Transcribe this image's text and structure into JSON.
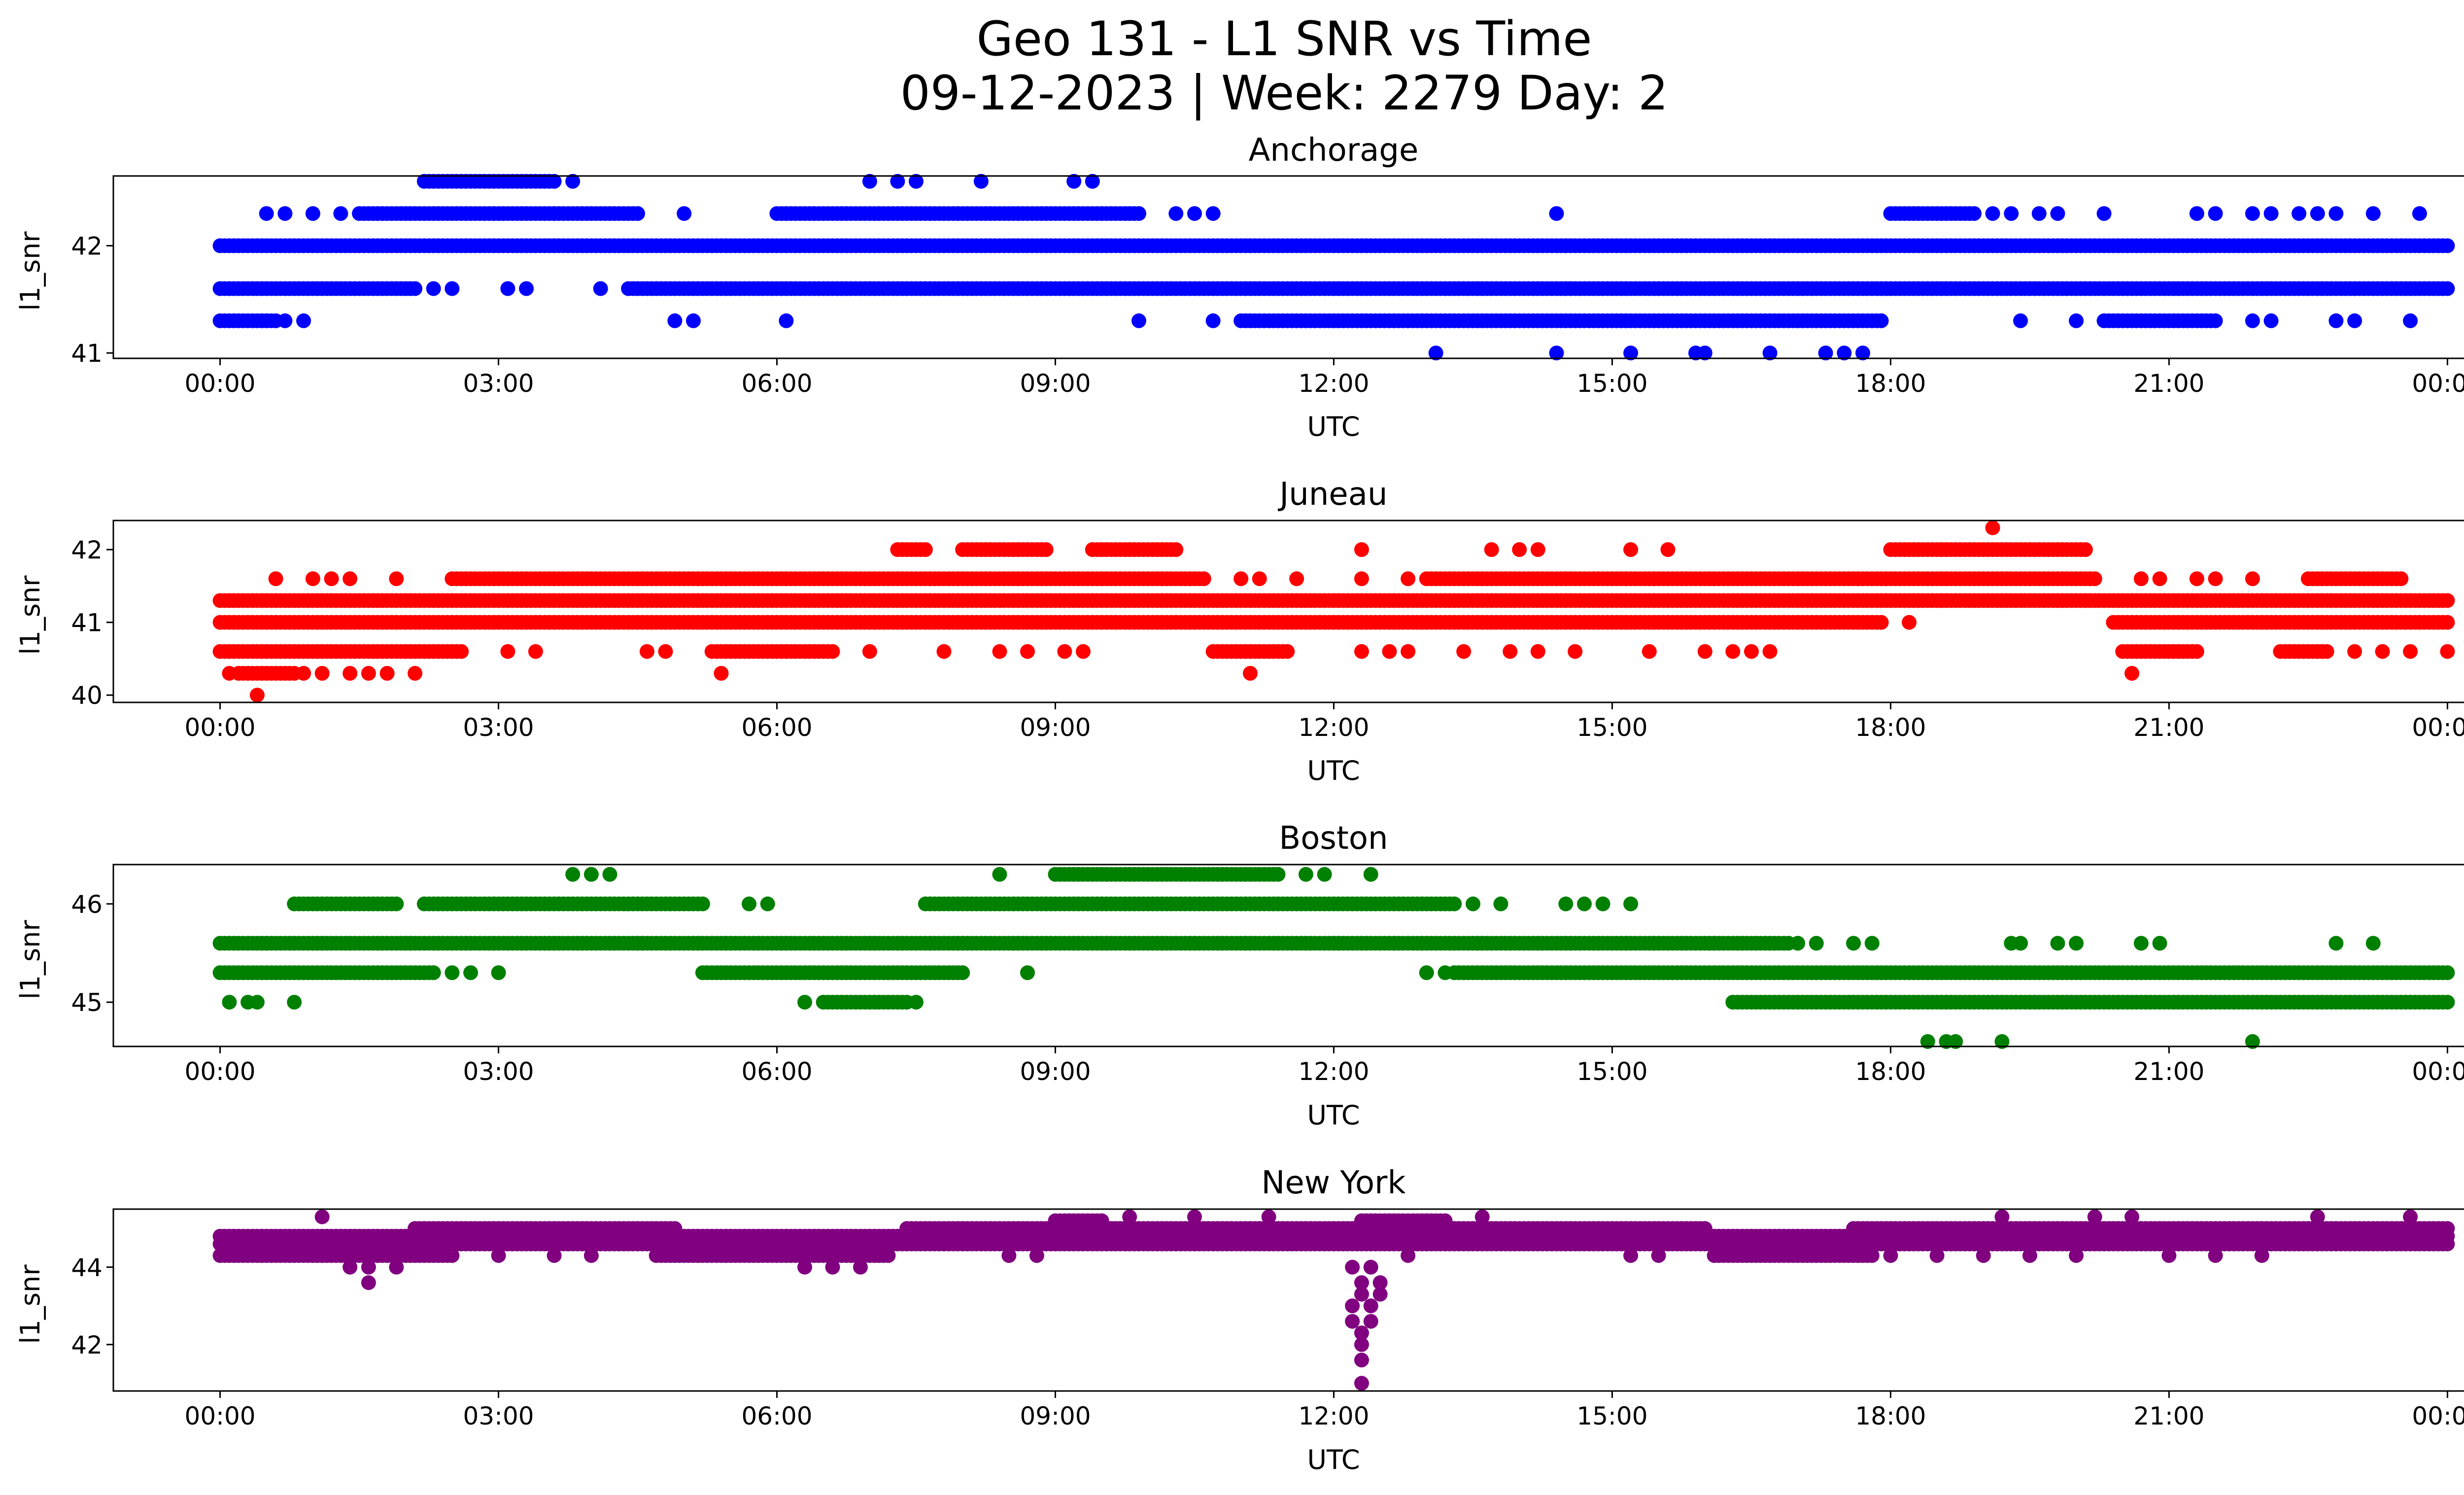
{
  "figure": {
    "title_line1": "Geo 131 - L1 SNR vs Time",
    "title_line2": "09-12-2023 | Week: 2279 Day: 2"
  },
  "chart_data": [
    {
      "type": "scatter",
      "title": "Anchorage",
      "xlabel": "UTC",
      "ylabel": "l1_snr",
      "color": "#0000ff",
      "x_ticks": [
        "00:00",
        "03:00",
        "06:00",
        "09:00",
        "12:00",
        "15:00",
        "18:00",
        "21:00",
        "00:00"
      ],
      "xlim_hours": [
        -1.15,
        25.15
      ],
      "ylim": [
        40.95,
        42.65
      ],
      "y_ticks": [
        41,
        42
      ],
      "levels": [
        {
          "y": 42.0,
          "segments": [
            [
              0.0,
              24.0
            ]
          ]
        },
        {
          "y": 41.6,
          "segments": [
            [
              0.0,
              2.1
            ],
            [
              4.4,
              24.0
            ]
          ]
        },
        {
          "y": 41.3,
          "segments": [
            [
              0.0,
              0.6
            ],
            [
              11.0,
              17.9
            ],
            [
              20.3,
              21.5
            ]
          ]
        },
        {
          "y": 42.3,
          "segments": [
            [
              1.5,
              4.5
            ],
            [
              6.0,
              9.9
            ],
            [
              18.0,
              18.9
            ]
          ]
        },
        {
          "y": 42.6,
          "segments": [
            [
              2.2,
              3.6
            ]
          ]
        }
      ],
      "points": [
        {
          "x": 0.7,
          "y": 41.3
        },
        {
          "x": 0.9,
          "y": 41.3
        },
        {
          "x": 4.9,
          "y": 41.3
        },
        {
          "x": 5.1,
          "y": 41.3
        },
        {
          "x": 6.1,
          "y": 41.3
        },
        {
          "x": 9.9,
          "y": 41.3
        },
        {
          "x": 10.7,
          "y": 41.3
        },
        {
          "x": 19.4,
          "y": 41.3
        },
        {
          "x": 20.0,
          "y": 41.3
        },
        {
          "x": 21.9,
          "y": 41.3
        },
        {
          "x": 22.1,
          "y": 41.3
        },
        {
          "x": 22.8,
          "y": 41.3
        },
        {
          "x": 23.0,
          "y": 41.3
        },
        {
          "x": 23.6,
          "y": 41.3
        },
        {
          "x": 2.3,
          "y": 41.6
        },
        {
          "x": 2.5,
          "y": 41.6
        },
        {
          "x": 3.1,
          "y": 41.6
        },
        {
          "x": 3.3,
          "y": 41.6
        },
        {
          "x": 4.1,
          "y": 41.6
        },
        {
          "x": 0.5,
          "y": 42.3
        },
        {
          "x": 0.7,
          "y": 42.3
        },
        {
          "x": 1.0,
          "y": 42.3
        },
        {
          "x": 1.3,
          "y": 42.3
        },
        {
          "x": 5.0,
          "y": 42.3
        },
        {
          "x": 10.3,
          "y": 42.3
        },
        {
          "x": 10.5,
          "y": 42.3
        },
        {
          "x": 10.7,
          "y": 42.3
        },
        {
          "x": 14.4,
          "y": 42.3
        },
        {
          "x": 19.1,
          "y": 42.3
        },
        {
          "x": 19.3,
          "y": 42.3
        },
        {
          "x": 19.6,
          "y": 42.3
        },
        {
          "x": 19.8,
          "y": 42.3
        },
        {
          "x": 20.3,
          "y": 42.3
        },
        {
          "x": 21.3,
          "y": 42.3
        },
        {
          "x": 21.5,
          "y": 42.3
        },
        {
          "x": 21.9,
          "y": 42.3
        },
        {
          "x": 22.1,
          "y": 42.3
        },
        {
          "x": 22.4,
          "y": 42.3
        },
        {
          "x": 22.6,
          "y": 42.3
        },
        {
          "x": 22.8,
          "y": 42.3
        },
        {
          "x": 23.2,
          "y": 42.3
        },
        {
          "x": 23.7,
          "y": 42.3
        },
        {
          "x": 3.8,
          "y": 42.6
        },
        {
          "x": 7.0,
          "y": 42.6
        },
        {
          "x": 7.3,
          "y": 42.6
        },
        {
          "x": 7.5,
          "y": 42.6
        },
        {
          "x": 8.2,
          "y": 42.6
        },
        {
          "x": 9.2,
          "y": 42.6
        },
        {
          "x": 9.4,
          "y": 42.6
        },
        {
          "x": 13.1,
          "y": 41.0
        },
        {
          "x": 14.4,
          "y": 41.0
        },
        {
          "x": 15.2,
          "y": 41.0
        },
        {
          "x": 15.9,
          "y": 41.0
        },
        {
          "x": 16.0,
          "y": 41.0
        },
        {
          "x": 16.7,
          "y": 41.0
        },
        {
          "x": 17.3,
          "y": 41.0
        },
        {
          "x": 17.5,
          "y": 41.0
        },
        {
          "x": 17.7,
          "y": 41.0
        }
      ]
    },
    {
      "type": "scatter",
      "title": "Juneau",
      "xlabel": "UTC",
      "ylabel": "l1_snr",
      "color": "#ff0000",
      "x_ticks": [
        "00:00",
        "03:00",
        "06:00",
        "09:00",
        "12:00",
        "15:00",
        "18:00",
        "21:00",
        "00:00"
      ],
      "xlim_hours": [
        -1.15,
        25.15
      ],
      "ylim": [
        39.9,
        42.4
      ],
      "y_ticks": [
        40,
        41,
        42
      ],
      "levels": [
        {
          "y": 41.3,
          "segments": [
            [
              0.0,
              24.0
            ]
          ]
        },
        {
          "y": 41.0,
          "segments": [
            [
              0.0,
              17.9
            ],
            [
              20.4,
              24.0
            ]
          ]
        },
        {
          "y": 41.6,
          "segments": [
            [
              2.5,
              10.6
            ],
            [
              13.0,
              20.2
            ],
            [
              22.5,
              23.5
            ]
          ]
        },
        {
          "y": 40.6,
          "segments": [
            [
              0.0,
              2.6
            ],
            [
              5.3,
              6.6
            ],
            [
              10.7,
              11.5
            ],
            [
              20.5,
              21.3
            ],
            [
              22.2,
              22.7
            ]
          ]
        },
        {
          "y": 42.0,
          "segments": [
            [
              7.3,
              7.6
            ],
            [
              8.0,
              8.9
            ],
            [
              9.4,
              10.3
            ],
            [
              18.0,
              20.1
            ]
          ]
        },
        {
          "y": 40.3,
          "segments": [
            [
              0.2,
              0.8
            ]
          ]
        }
      ],
      "points": [
        {
          "x": 0.4,
          "y": 40.0
        },
        {
          "x": 5.4,
          "y": 40.3
        },
        {
          "x": 11.1,
          "y": 40.3
        },
        {
          "x": 20.6,
          "y": 40.3
        },
        {
          "x": 19.1,
          "y": 42.3
        },
        {
          "x": 0.1,
          "y": 40.3
        },
        {
          "x": 0.9,
          "y": 40.3
        },
        {
          "x": 1.1,
          "y": 40.3
        },
        {
          "x": 1.4,
          "y": 40.3
        },
        {
          "x": 1.6,
          "y": 40.3
        },
        {
          "x": 1.8,
          "y": 40.3
        },
        {
          "x": 2.1,
          "y": 40.3
        },
        {
          "x": 0.6,
          "y": 41.6
        },
        {
          "x": 1.0,
          "y": 41.6
        },
        {
          "x": 1.2,
          "y": 41.6
        },
        {
          "x": 1.4,
          "y": 41.6
        },
        {
          "x": 1.9,
          "y": 41.6
        },
        {
          "x": 11.0,
          "y": 41.6
        },
        {
          "x": 11.2,
          "y": 41.6
        },
        {
          "x": 11.6,
          "y": 41.6
        },
        {
          "x": 12.3,
          "y": 41.6
        },
        {
          "x": 12.8,
          "y": 41.6
        },
        {
          "x": 20.7,
          "y": 41.6
        },
        {
          "x": 20.9,
          "y": 41.6
        },
        {
          "x": 21.3,
          "y": 41.6
        },
        {
          "x": 21.5,
          "y": 41.6
        },
        {
          "x": 21.9,
          "y": 41.6
        },
        {
          "x": 12.3,
          "y": 42.0
        },
        {
          "x": 13.7,
          "y": 42.0
        },
        {
          "x": 14.0,
          "y": 42.0
        },
        {
          "x": 14.2,
          "y": 42.0
        },
        {
          "x": 15.2,
          "y": 42.0
        },
        {
          "x": 15.6,
          "y": 42.0
        },
        {
          "x": 3.1,
          "y": 40.6
        },
        {
          "x": 3.4,
          "y": 40.6
        },
        {
          "x": 4.6,
          "y": 40.6
        },
        {
          "x": 4.8,
          "y": 40.6
        },
        {
          "x": 7.0,
          "y": 40.6
        },
        {
          "x": 7.8,
          "y": 40.6
        },
        {
          "x": 8.4,
          "y": 40.6
        },
        {
          "x": 8.7,
          "y": 40.6
        },
        {
          "x": 9.1,
          "y": 40.6
        },
        {
          "x": 9.3,
          "y": 40.6
        },
        {
          "x": 12.3,
          "y": 40.6
        },
        {
          "x": 12.6,
          "y": 40.6
        },
        {
          "x": 12.8,
          "y": 40.6
        },
        {
          "x": 13.4,
          "y": 40.6
        },
        {
          "x": 13.9,
          "y": 40.6
        },
        {
          "x": 14.2,
          "y": 40.6
        },
        {
          "x": 14.6,
          "y": 40.6
        },
        {
          "x": 15.4,
          "y": 40.6
        },
        {
          "x": 16.0,
          "y": 40.6
        },
        {
          "x": 16.3,
          "y": 40.6
        },
        {
          "x": 16.5,
          "y": 40.6
        },
        {
          "x": 16.7,
          "y": 40.6
        },
        {
          "x": 23.0,
          "y": 40.6
        },
        {
          "x": 23.3,
          "y": 40.6
        },
        {
          "x": 23.6,
          "y": 40.6
        },
        {
          "x": 24.0,
          "y": 40.6
        },
        {
          "x": 18.2,
          "y": 41.0
        }
      ]
    },
    {
      "type": "scatter",
      "title": "Boston",
      "xlabel": "UTC",
      "ylabel": "l1_snr",
      "color": "#008000",
      "x_ticks": [
        "00:00",
        "03:00",
        "06:00",
        "09:00",
        "12:00",
        "15:00",
        "18:00",
        "21:00",
        "00:00"
      ],
      "xlim_hours": [
        -1.15,
        25.15
      ],
      "ylim": [
        44.55,
        46.4
      ],
      "y_ticks": [
        45,
        46
      ],
      "levels": [
        {
          "y": 45.6,
          "segments": [
            [
              0.0,
              16.9
            ]
          ]
        },
        {
          "y": 45.3,
          "segments": [
            [
              0.0,
              2.3
            ],
            [
              5.2,
              8.0
            ],
            [
              13.3,
              24.0
            ]
          ]
        },
        {
          "y": 46.0,
          "segments": [
            [
              0.8,
              1.9
            ],
            [
              2.2,
              5.2
            ],
            [
              7.6,
              13.3
            ]
          ]
        },
        {
          "y": 45.0,
          "segments": [
            [
              6.5,
              7.4
            ],
            [
              16.3,
              24.0
            ]
          ]
        },
        {
          "y": 46.3,
          "segments": [
            [
              9.0,
              11.4
            ]
          ]
        }
      ],
      "points": [
        {
          "x": 0.1,
          "y": 45.0
        },
        {
          "x": 0.3,
          "y": 45.0
        },
        {
          "x": 0.4,
          "y": 45.0
        },
        {
          "x": 0.8,
          "y": 45.0
        },
        {
          "x": 6.3,
          "y": 45.0
        },
        {
          "x": 7.5,
          "y": 45.0
        },
        {
          "x": 2.5,
          "y": 45.3
        },
        {
          "x": 2.7,
          "y": 45.3
        },
        {
          "x": 3.0,
          "y": 45.3
        },
        {
          "x": 8.7,
          "y": 45.3
        },
        {
          "x": 13.0,
          "y": 45.3
        },
        {
          "x": 13.2,
          "y": 45.3
        },
        {
          "x": 5.7,
          "y": 46.0
        },
        {
          "x": 5.9,
          "y": 46.0
        },
        {
          "x": 13.5,
          "y": 46.0
        },
        {
          "x": 13.8,
          "y": 46.0
        },
        {
          "x": 14.5,
          "y": 46.0
        },
        {
          "x": 14.7,
          "y": 46.0
        },
        {
          "x": 14.9,
          "y": 46.0
        },
        {
          "x": 15.2,
          "y": 46.0
        },
        {
          "x": 3.8,
          "y": 46.3
        },
        {
          "x": 4.0,
          "y": 46.3
        },
        {
          "x": 4.2,
          "y": 46.3
        },
        {
          "x": 8.4,
          "y": 46.3
        },
        {
          "x": 11.7,
          "y": 46.3
        },
        {
          "x": 11.9,
          "y": 46.3
        },
        {
          "x": 12.4,
          "y": 46.3
        },
        {
          "x": 17.0,
          "y": 45.6
        },
        {
          "x": 17.2,
          "y": 45.6
        },
        {
          "x": 17.6,
          "y": 45.6
        },
        {
          "x": 17.8,
          "y": 45.6
        },
        {
          "x": 19.3,
          "y": 45.6
        },
        {
          "x": 19.4,
          "y": 45.6
        },
        {
          "x": 19.8,
          "y": 45.6
        },
        {
          "x": 20.0,
          "y": 45.6
        },
        {
          "x": 20.7,
          "y": 45.6
        },
        {
          "x": 20.9,
          "y": 45.6
        },
        {
          "x": 22.8,
          "y": 45.6
        },
        {
          "x": 23.2,
          "y": 45.6
        },
        {
          "x": 18.4,
          "y": 44.6
        },
        {
          "x": 18.6,
          "y": 44.6
        },
        {
          "x": 18.7,
          "y": 44.6
        },
        {
          "x": 19.2,
          "y": 44.6
        },
        {
          "x": 21.9,
          "y": 44.6
        }
      ]
    },
    {
      "type": "scatter",
      "title": "New York",
      "xlabel": "UTC",
      "ylabel": "l1_snr",
      "color": "#800080",
      "x_ticks": [
        "00:00",
        "03:00",
        "06:00",
        "09:00",
        "12:00",
        "15:00",
        "18:00",
        "21:00",
        "00:00"
      ],
      "xlim_hours": [
        -1.15,
        25.15
      ],
      "ylim": [
        40.8,
        45.5
      ],
      "y_ticks": [
        42,
        44
      ],
      "levels": [
        {
          "y": 44.6,
          "segments": [
            [
              0.0,
              24.0
            ]
          ]
        },
        {
          "y": 44.3,
          "segments": [
            [
              0.0,
              2.5
            ],
            [
              4.7,
              7.2
            ],
            [
              16.1,
              17.8
            ]
          ]
        },
        {
          "y": 44.8,
          "segments": [
            [
              0.0,
              24.0
            ]
          ]
        },
        {
          "y": 45.0,
          "segments": [
            [
              2.1,
              4.9
            ],
            [
              7.4,
              16.0
            ],
            [
              17.6,
              24.0
            ]
          ]
        },
        {
          "y": 45.2,
          "segments": [
            [
              9.0,
              9.5
            ],
            [
              12.3,
              13.2
            ]
          ]
        }
      ],
      "points": [
        {
          "x": 1.6,
          "y": 43.6
        },
        {
          "x": 1.4,
          "y": 44.0
        },
        {
          "x": 1.6,
          "y": 44.0
        },
        {
          "x": 1.9,
          "y": 44.0
        },
        {
          "x": 6.3,
          "y": 44.0
        },
        {
          "x": 6.6,
          "y": 44.0
        },
        {
          "x": 6.9,
          "y": 44.0
        },
        {
          "x": 12.2,
          "y": 44.0
        },
        {
          "x": 12.4,
          "y": 44.0
        },
        {
          "x": 12.3,
          "y": 43.6
        },
        {
          "x": 12.5,
          "y": 43.6
        },
        {
          "x": 12.3,
          "y": 43.3
        },
        {
          "x": 12.5,
          "y": 43.3
        },
        {
          "x": 12.2,
          "y": 43.0
        },
        {
          "x": 12.4,
          "y": 43.0
        },
        {
          "x": 12.2,
          "y": 42.6
        },
        {
          "x": 12.4,
          "y": 42.6
        },
        {
          "x": 12.3,
          "y": 42.3
        },
        {
          "x": 12.3,
          "y": 42.0
        },
        {
          "x": 12.3,
          "y": 41.6
        },
        {
          "x": 12.3,
          "y": 41.0
        },
        {
          "x": 1.1,
          "y": 45.3
        },
        {
          "x": 9.8,
          "y": 45.3
        },
        {
          "x": 10.5,
          "y": 45.3
        },
        {
          "x": 11.3,
          "y": 45.3
        },
        {
          "x": 13.6,
          "y": 45.3
        },
        {
          "x": 19.2,
          "y": 45.3
        },
        {
          "x": 20.2,
          "y": 45.3
        },
        {
          "x": 20.6,
          "y": 45.3
        },
        {
          "x": 22.6,
          "y": 45.3
        },
        {
          "x": 23.6,
          "y": 45.3
        },
        {
          "x": 3.0,
          "y": 44.3
        },
        {
          "x": 3.6,
          "y": 44.3
        },
        {
          "x": 4.0,
          "y": 44.3
        },
        {
          "x": 8.5,
          "y": 44.3
        },
        {
          "x": 8.8,
          "y": 44.3
        },
        {
          "x": 12.8,
          "y": 44.3
        },
        {
          "x": 15.2,
          "y": 44.3
        },
        {
          "x": 15.5,
          "y": 44.3
        },
        {
          "x": 18.0,
          "y": 44.3
        },
        {
          "x": 18.5,
          "y": 44.3
        },
        {
          "x": 19.0,
          "y": 44.3
        },
        {
          "x": 19.5,
          "y": 44.3
        },
        {
          "x": 20.0,
          "y": 44.3
        },
        {
          "x": 21.0,
          "y": 44.3
        },
        {
          "x": 21.5,
          "y": 44.3
        },
        {
          "x": 22.0,
          "y": 44.3
        }
      ]
    }
  ]
}
